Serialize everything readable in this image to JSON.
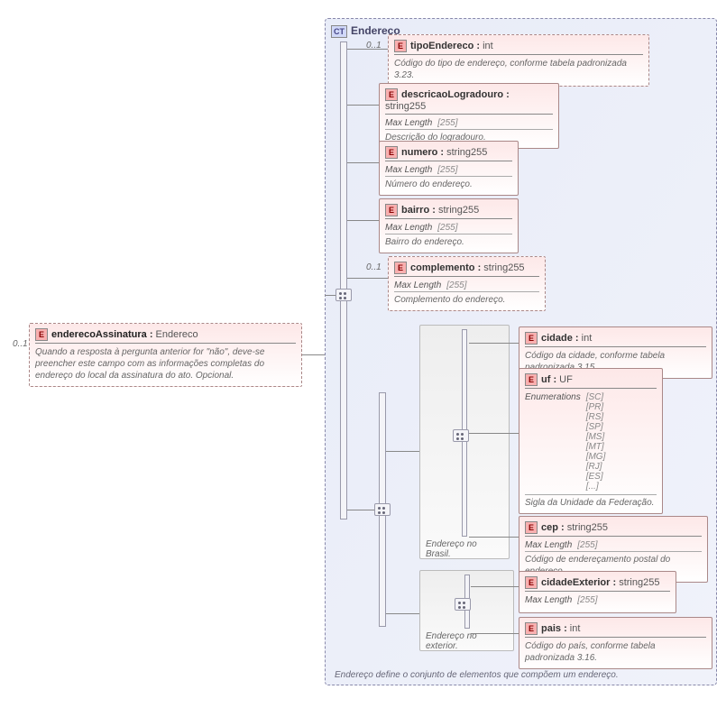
{
  "root": {
    "name": "enderecoAssinatura",
    "type": "Endereco",
    "desc": "Quando a resposta à pergunta anterior for \"não\", deve-se preencher este campo com as informações completas do endereço do local da\nassinatura do ato. Opcional.",
    "card": "0..1"
  },
  "ct": {
    "title": "Endereco",
    "desc": "Endereço define o conjunto de elementos que compõem um endereço."
  },
  "els": {
    "tipo": {
      "name": "tipoEndereco",
      "type": "int",
      "desc": "Código do tipo de endereço, conforme tabela padronizada 3.23.",
      "card": "0..1",
      "dashed": true
    },
    "logr": {
      "name": "descricaoLogradouro",
      "type": "string255",
      "max": "255",
      "desc": "Descrição do logradouro."
    },
    "num": {
      "name": "numero",
      "type": "string255",
      "max": "255",
      "desc": "Número do endereço."
    },
    "bai": {
      "name": "bairro",
      "type": "string255",
      "max": "255",
      "desc": "Bairro do endereço."
    },
    "comp": {
      "name": "complemento",
      "type": "string255",
      "max": "255",
      "desc": "Complemento do endereço.",
      "card": "0..1",
      "dashed": true
    },
    "cid": {
      "name": "cidade",
      "type": "int",
      "desc": "Código da cidade, conforme tabela padronizada 3.15."
    },
    "uf": {
      "name": "uf",
      "type": "UF",
      "enums": [
        "SC",
        "PR",
        "RS",
        "SP",
        "MS",
        "MT",
        "MG",
        "RJ",
        "ES",
        "..."
      ],
      "desc": "Sigla da Unidade da Federação."
    },
    "cep": {
      "name": "cep",
      "type": "string255",
      "max": "255",
      "desc": "Código de endereçamento postal do endereço."
    },
    "cext": {
      "name": "cidadeExterior",
      "type": "string255",
      "max": "255"
    },
    "pais": {
      "name": "pais",
      "type": "int",
      "desc": "Código do país, conforme tabela padronizada 3.16."
    }
  },
  "grp": {
    "br": "Endereço no Brasil.",
    "ex": "Endereço no exterior."
  },
  "lbl": {
    "maxlen": "Max Length",
    "enum": "Enumerations"
  }
}
